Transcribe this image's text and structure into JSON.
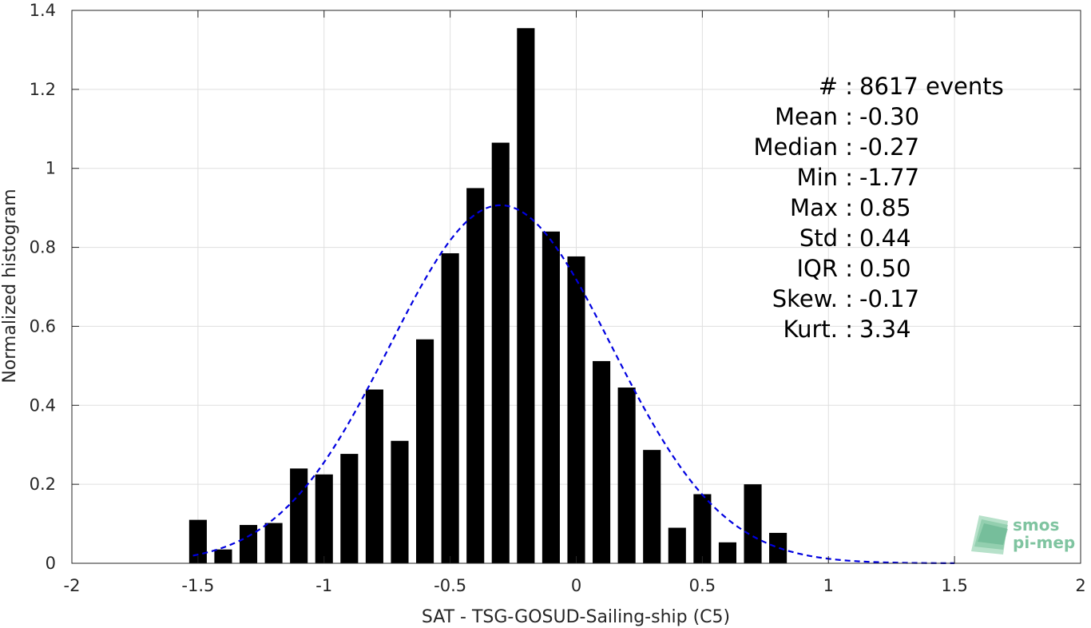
{
  "chart_data": {
    "type": "bar",
    "xlabel": "SAT - TSG-GOSUD-Sailing-ship (C5)",
    "ylabel": "Normalized histogram",
    "xlim": [
      -2,
      2
    ],
    "ylim": [
      0,
      1.4
    ],
    "x_ticks": [
      -2,
      -1.5,
      -1,
      -0.5,
      0,
      0.5,
      1,
      1.5,
      2
    ],
    "y_ticks": [
      0,
      0.2,
      0.4,
      0.6,
      0.8,
      1,
      1.2,
      1.4
    ],
    "x_tick_labels": [
      "-2",
      "-1.5",
      "-1",
      "-0.5",
      "0",
      "0.5",
      "1",
      "1.5",
      "2"
    ],
    "y_tick_labels": [
      "0",
      "0.2",
      "0.4",
      "0.6",
      "0.8",
      "1",
      "1.2",
      "1.4"
    ],
    "grid": true,
    "bar_color": "#000000",
    "bins": [
      {
        "x": -1.5,
        "value": 0.11
      },
      {
        "x": -1.4,
        "value": 0.035
      },
      {
        "x": -1.3,
        "value": 0.097
      },
      {
        "x": -1.2,
        "value": 0.102
      },
      {
        "x": -1.1,
        "value": 0.24
      },
      {
        "x": -1.0,
        "value": 0.225
      },
      {
        "x": -0.9,
        "value": 0.277
      },
      {
        "x": -0.8,
        "value": 0.44
      },
      {
        "x": -0.7,
        "value": 0.31
      },
      {
        "x": -0.6,
        "value": 0.567
      },
      {
        "x": -0.5,
        "value": 0.785
      },
      {
        "x": -0.4,
        "value": 0.95
      },
      {
        "x": -0.3,
        "value": 1.065
      },
      {
        "x": -0.2,
        "value": 1.355
      },
      {
        "x": -0.1,
        "value": 0.84
      },
      {
        "x": 0.0,
        "value": 0.777
      },
      {
        "x": 0.1,
        "value": 0.512
      },
      {
        "x": 0.2,
        "value": 0.445
      },
      {
        "x": 0.3,
        "value": 0.287
      },
      {
        "x": 0.4,
        "value": 0.09
      },
      {
        "x": 0.5,
        "value": 0.175
      },
      {
        "x": 0.6,
        "value": 0.053
      },
      {
        "x": 0.7,
        "value": 0.2
      },
      {
        "x": 0.8,
        "value": 0.077
      }
    ],
    "fit": {
      "type": "gaussian",
      "mean": -0.3,
      "std": 0.44,
      "x_range": [
        -1.52,
        1.5
      ],
      "color": "#0000e0",
      "style": "dashed"
    },
    "stats": [
      {
        "label": "#  :",
        "value": "8617 events"
      },
      {
        "label": "Mean :",
        "value": "-0.30"
      },
      {
        "label": "Median :",
        "value": "-0.27"
      },
      {
        "label": "Min :",
        "value": "-1.77"
      },
      {
        "label": "Max :",
        "value": "0.85"
      },
      {
        "label": "Std :",
        "value": "0.44"
      },
      {
        "label": "IQR :",
        "value": "0.50"
      },
      {
        "label": "Skew. :",
        "value": "-0.17"
      },
      {
        "label": "Kurt. :",
        "value": "3.34"
      }
    ]
  },
  "logo": {
    "line1": "smos",
    "line2": "pi-mep"
  }
}
